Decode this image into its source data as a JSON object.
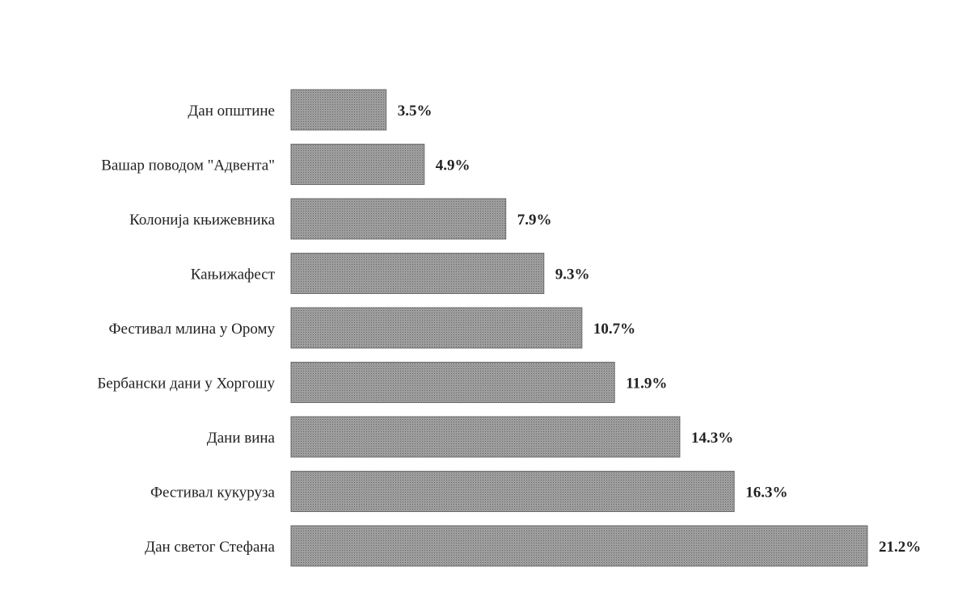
{
  "chart_data": {
    "type": "bar",
    "orientation": "horizontal",
    "categories": [
      "Дан општине",
      "Вашар поводом \"Адвента\"",
      "Колонија књижевника",
      "Кањижафест",
      "Фестивал млина у Орому",
      "Бербански дани у Хоргошу",
      "Дани вина",
      "Фестивал кукуруза",
      "Дан светог Стефана"
    ],
    "values": [
      3.5,
      4.9,
      7.9,
      9.3,
      10.7,
      11.9,
      14.3,
      16.3,
      21.2
    ],
    "value_labels": [
      "3.5%",
      "4.9%",
      "7.9%",
      "9.3%",
      "10.7%",
      "11.9%",
      "14.3%",
      "16.3%",
      "21.2%"
    ],
    "xlim": [
      0,
      21.2
    ],
    "grid": false,
    "legend": "none",
    "colors": {
      "bar_fill": "#a3a3a3",
      "bar_pattern": "#5e5e5e",
      "bar_edge": "#6a6a6a",
      "text": "#222222"
    }
  }
}
